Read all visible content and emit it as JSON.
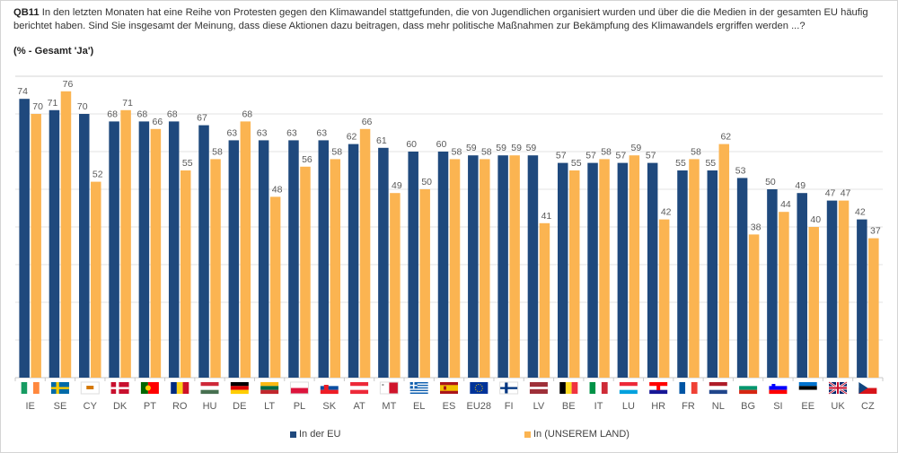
{
  "title": {
    "question_id": "QB11",
    "question_text": "In den letzten Monaten hat eine Reihe von Protesten gegen den Klimawandel stattgefunden, die von Jugendlichen organisiert wurden und über die die Medien in der gesamten EU häufig berichtet haben. Sind Sie insgesamt der Meinung, dass diese Aktionen dazu beitragen, dass mehr politische Maßnahmen zur Bekämpfung des Klimawandels ergriffen werden ...?",
    "subtitle": "(% - Gesamt 'Ja')"
  },
  "colors": {
    "eu": "#1f497d",
    "country": "#fbb451",
    "gridline": "#e3e3e3",
    "axis": "#c8c8c8"
  },
  "chart_data": {
    "type": "bar",
    "title": "QB11 (% - Gesamt 'Ja')",
    "xlabel": "",
    "ylabel": "",
    "ylim": [
      0,
      80
    ],
    "grid": true,
    "y_gridlines": [
      10,
      20,
      30,
      40,
      50,
      60,
      70,
      80
    ],
    "legend_position": "bottom",
    "categories": [
      "IE",
      "SE",
      "CY",
      "DK",
      "PT",
      "RO",
      "HU",
      "DE",
      "LT",
      "PL",
      "SK",
      "AT",
      "MT",
      "EL",
      "ES",
      "EU28",
      "FI",
      "LV",
      "BE",
      "IT",
      "LU",
      "HR",
      "FR",
      "NL",
      "BG",
      "SI",
      "EE",
      "UK",
      "CZ"
    ],
    "series": [
      {
        "name": "In der EU",
        "color": "#1f497d",
        "values": [
          74,
          71,
          70,
          68,
          68,
          68,
          67,
          63,
          63,
          63,
          63,
          62,
          61,
          60,
          60,
          59,
          59,
          59,
          57,
          57,
          57,
          57,
          55,
          55,
          53,
          50,
          49,
          47,
          42
        ]
      },
      {
        "name": "In (UNSEREM LAND)",
        "color": "#fbb451",
        "values": [
          70,
          76,
          52,
          71,
          66,
          55,
          58,
          68,
          48,
          56,
          58,
          66,
          49,
          50,
          58,
          58,
          59,
          41,
          55,
          58,
          59,
          42,
          58,
          62,
          38,
          44,
          40,
          47,
          37
        ]
      }
    ]
  },
  "flags": {
    "IE": "flag-ireland",
    "SE": "flag-sweden",
    "CY": "flag-cyprus",
    "DK": "flag-denmark",
    "PT": "flag-portugal",
    "RO": "flag-romania",
    "HU": "flag-hungary",
    "DE": "flag-germany",
    "LT": "flag-lithuania",
    "PL": "flag-poland",
    "SK": "flag-slovakia",
    "AT": "flag-austria",
    "MT": "flag-malta",
    "EL": "flag-greece",
    "ES": "flag-spain",
    "EU28": "flag-eu",
    "FI": "flag-finland",
    "LV": "flag-latvia",
    "BE": "flag-belgium",
    "IT": "flag-italy",
    "LU": "flag-luxembourg",
    "HR": "flag-croatia",
    "FR": "flag-france",
    "NL": "flag-netherlands",
    "BG": "flag-bulgaria",
    "SI": "flag-slovenia",
    "EE": "flag-estonia",
    "UK": "flag-uk",
    "CZ": "flag-czechia"
  },
  "legend": {
    "items": [
      {
        "label": "In der EU",
        "color": "#1f497d"
      },
      {
        "label": "In (UNSEREM LAND)",
        "color": "#fbb451"
      }
    ]
  }
}
